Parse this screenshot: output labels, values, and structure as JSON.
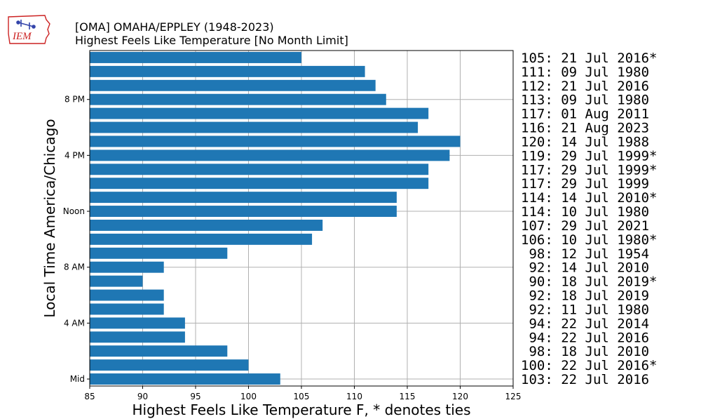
{
  "header": {
    "logo_text": "IEM",
    "title_line1": "[OMA] OMAHA/EPPLEY (1948-2023)",
    "title_line2": "Highest Feels Like Temperature [No Month Limit]"
  },
  "colors": {
    "bar": "#1f77b4",
    "grid": "#b0b0b0",
    "logo_red": "#cc2222",
    "logo_blue": "#3344aa"
  },
  "chart_data": {
    "type": "bar",
    "orientation": "horizontal",
    "xlabel": "Highest Feels Like Temperature F, * denotes ties",
    "ylabel": "Local Time America/Chicago",
    "xlim": [
      85,
      125
    ],
    "x_ticks": [
      85,
      90,
      95,
      100,
      105,
      110,
      115,
      120,
      125
    ],
    "y_ticks": [
      {
        "hour": 0,
        "label": "Mid"
      },
      {
        "hour": 4,
        "label": "4 AM"
      },
      {
        "hour": 8,
        "label": "8 AM"
      },
      {
        "hour": 12,
        "label": "Noon"
      },
      {
        "hour": 16,
        "label": "4 PM"
      },
      {
        "hour": 20,
        "label": "8 PM"
      }
    ],
    "grid": true,
    "bars": [
      {
        "hour": 0,
        "value": 103,
        "label": "103: 22 Jul 2016"
      },
      {
        "hour": 1,
        "value": 100,
        "label": "100: 22 Jul 2016*"
      },
      {
        "hour": 2,
        "value": 98,
        "label": " 98: 18 Jul 2010"
      },
      {
        "hour": 3,
        "value": 94,
        "label": " 94: 22 Jul 2016"
      },
      {
        "hour": 4,
        "value": 94,
        "label": " 94: 22 Jul 2014"
      },
      {
        "hour": 5,
        "value": 92,
        "label": " 92: 11 Jul 1980"
      },
      {
        "hour": 6,
        "value": 92,
        "label": " 92: 18 Jul 2019"
      },
      {
        "hour": 7,
        "value": 90,
        "label": " 90: 18 Jul 2019*"
      },
      {
        "hour": 8,
        "value": 92,
        "label": " 92: 14 Jul 2010"
      },
      {
        "hour": 9,
        "value": 98,
        "label": " 98: 12 Jul 1954"
      },
      {
        "hour": 10,
        "value": 106,
        "label": "106: 10 Jul 1980*"
      },
      {
        "hour": 11,
        "value": 107,
        "label": "107: 29 Jul 2021"
      },
      {
        "hour": 12,
        "value": 114,
        "label": "114: 10 Jul 1980"
      },
      {
        "hour": 13,
        "value": 114,
        "label": "114: 14 Jul 2010*"
      },
      {
        "hour": 14,
        "value": 117,
        "label": "117: 29 Jul 1999"
      },
      {
        "hour": 15,
        "value": 117,
        "label": "117: 29 Jul 1999*"
      },
      {
        "hour": 16,
        "value": 119,
        "label": "119: 29 Jul 1999*"
      },
      {
        "hour": 17,
        "value": 120,
        "label": "120: 14 Jul 1988"
      },
      {
        "hour": 18,
        "value": 116,
        "label": "116: 21 Aug 2023"
      },
      {
        "hour": 19,
        "value": 117,
        "label": "117: 01 Aug 2011"
      },
      {
        "hour": 20,
        "value": 113,
        "label": "113: 09 Jul 1980"
      },
      {
        "hour": 21,
        "value": 112,
        "label": "112: 21 Jul 2016"
      },
      {
        "hour": 22,
        "value": 111,
        "label": "111: 09 Jul 1980"
      },
      {
        "hour": 23,
        "value": 105,
        "label": "105: 21 Jul 2016*"
      }
    ]
  }
}
